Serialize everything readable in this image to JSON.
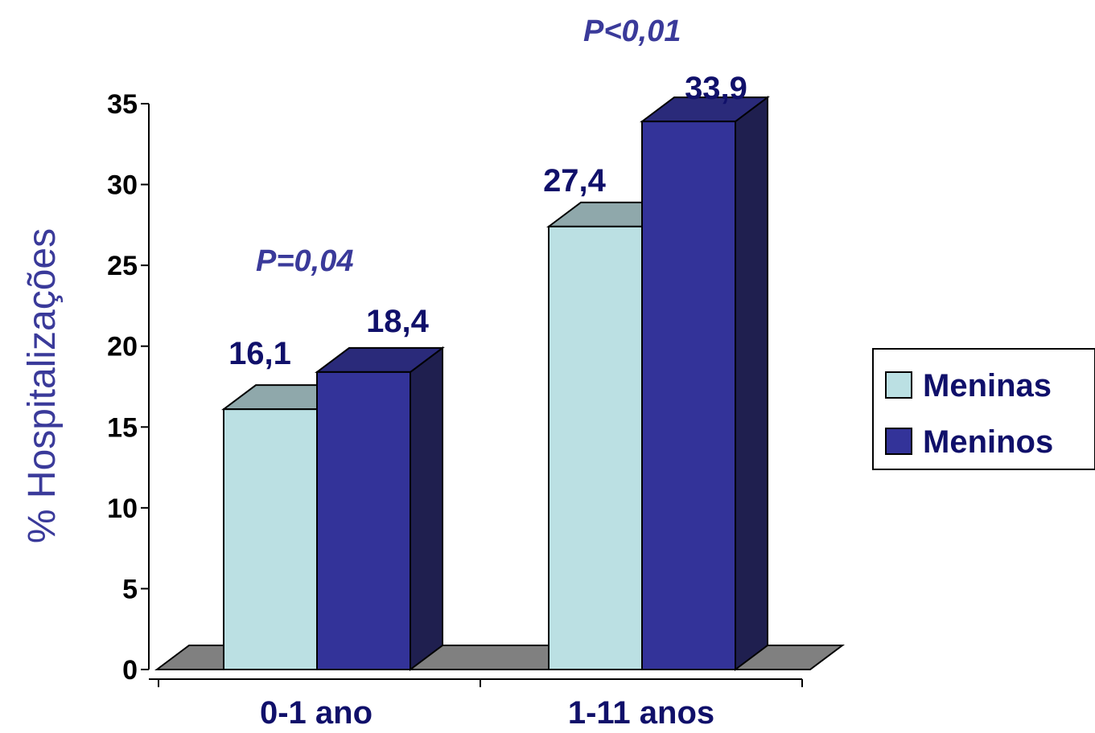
{
  "chart_data": {
    "type": "bar",
    "title": "",
    "xlabel": "",
    "ylabel": "% Hospitalizações",
    "ylim": [
      0,
      35
    ],
    "yticks": [
      "0",
      "5",
      "10",
      "15",
      "20",
      "25",
      "30",
      "35"
    ],
    "ytick_values": [
      0,
      5,
      10,
      15,
      20,
      25,
      30,
      35
    ],
    "categories": [
      "0-1 ano",
      "1-11 anos"
    ],
    "series": [
      {
        "name": "Meninas",
        "values": [
          16.1,
          27.4
        ],
        "labels": [
          "16,1",
          "27,4"
        ],
        "color": "#bbe0e3",
        "top_color": "#8fa8ab"
      },
      {
        "name": "Meninos",
        "values": [
          18.4,
          33.9
        ],
        "labels": [
          "18,4",
          "33,9"
        ],
        "color": "#333399",
        "top_color": "#2a2a7a",
        "side_color": "#1f1f4f"
      }
    ],
    "annotations": [
      "P=0,04",
      "P<0,01"
    ],
    "legend_position": "right",
    "grid": false,
    "three_d": true,
    "floor_color": "#808080"
  }
}
